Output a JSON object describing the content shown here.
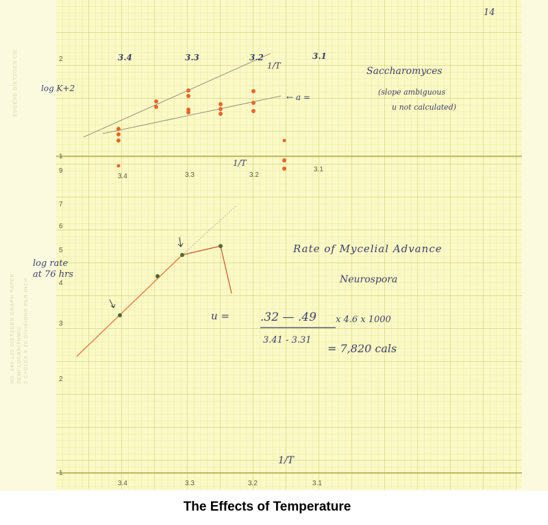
{
  "sheet": {
    "page_number": "14",
    "maker": "EUGENE DIETZGEN CO.",
    "paper_spec": [
      "NO. 340-L20 DIETZGEN GRAPH PAPER",
      "SEMI-LOGARITHMIC",
      "2 CYCLES X 20 DIVISIONS PER INCH"
    ]
  },
  "log_axis_labels": [
    "2",
    "1",
    "9",
    "7",
    "6",
    "5",
    "4",
    "3",
    "2",
    "1"
  ],
  "upper_plot": {
    "y_label": "log K+2",
    "top_ticks": [
      "3.4",
      "3.3",
      "3.2",
      "3.1"
    ],
    "top_axis_label": "1/T",
    "x_ticks": [
      "3.4",
      "3.3",
      "3.2",
      "3.1"
    ],
    "x_label": "1/T",
    "line_note": "← a =",
    "title": "Saccharomyces",
    "note": [
      "(slope ambiguous",
      "u not calculated)"
    ]
  },
  "lower_plot": {
    "y_label": [
      "log rate",
      "at 76 hrs"
    ],
    "title": "Rate of Mycelial Advance",
    "subtitle": "Neurospora",
    "formula": {
      "lhs": "u =",
      "numerator": ".32 — .49",
      "factor": "x 4.6 x 1000",
      "denominator": "3.41 - 3.31",
      "result": "= 7,820 cals"
    },
    "x_label": "1/T",
    "x_ticks": [
      "3.4",
      "3.3",
      "3.2",
      "3.1"
    ]
  },
  "caption": "The Effects of Temperature"
}
